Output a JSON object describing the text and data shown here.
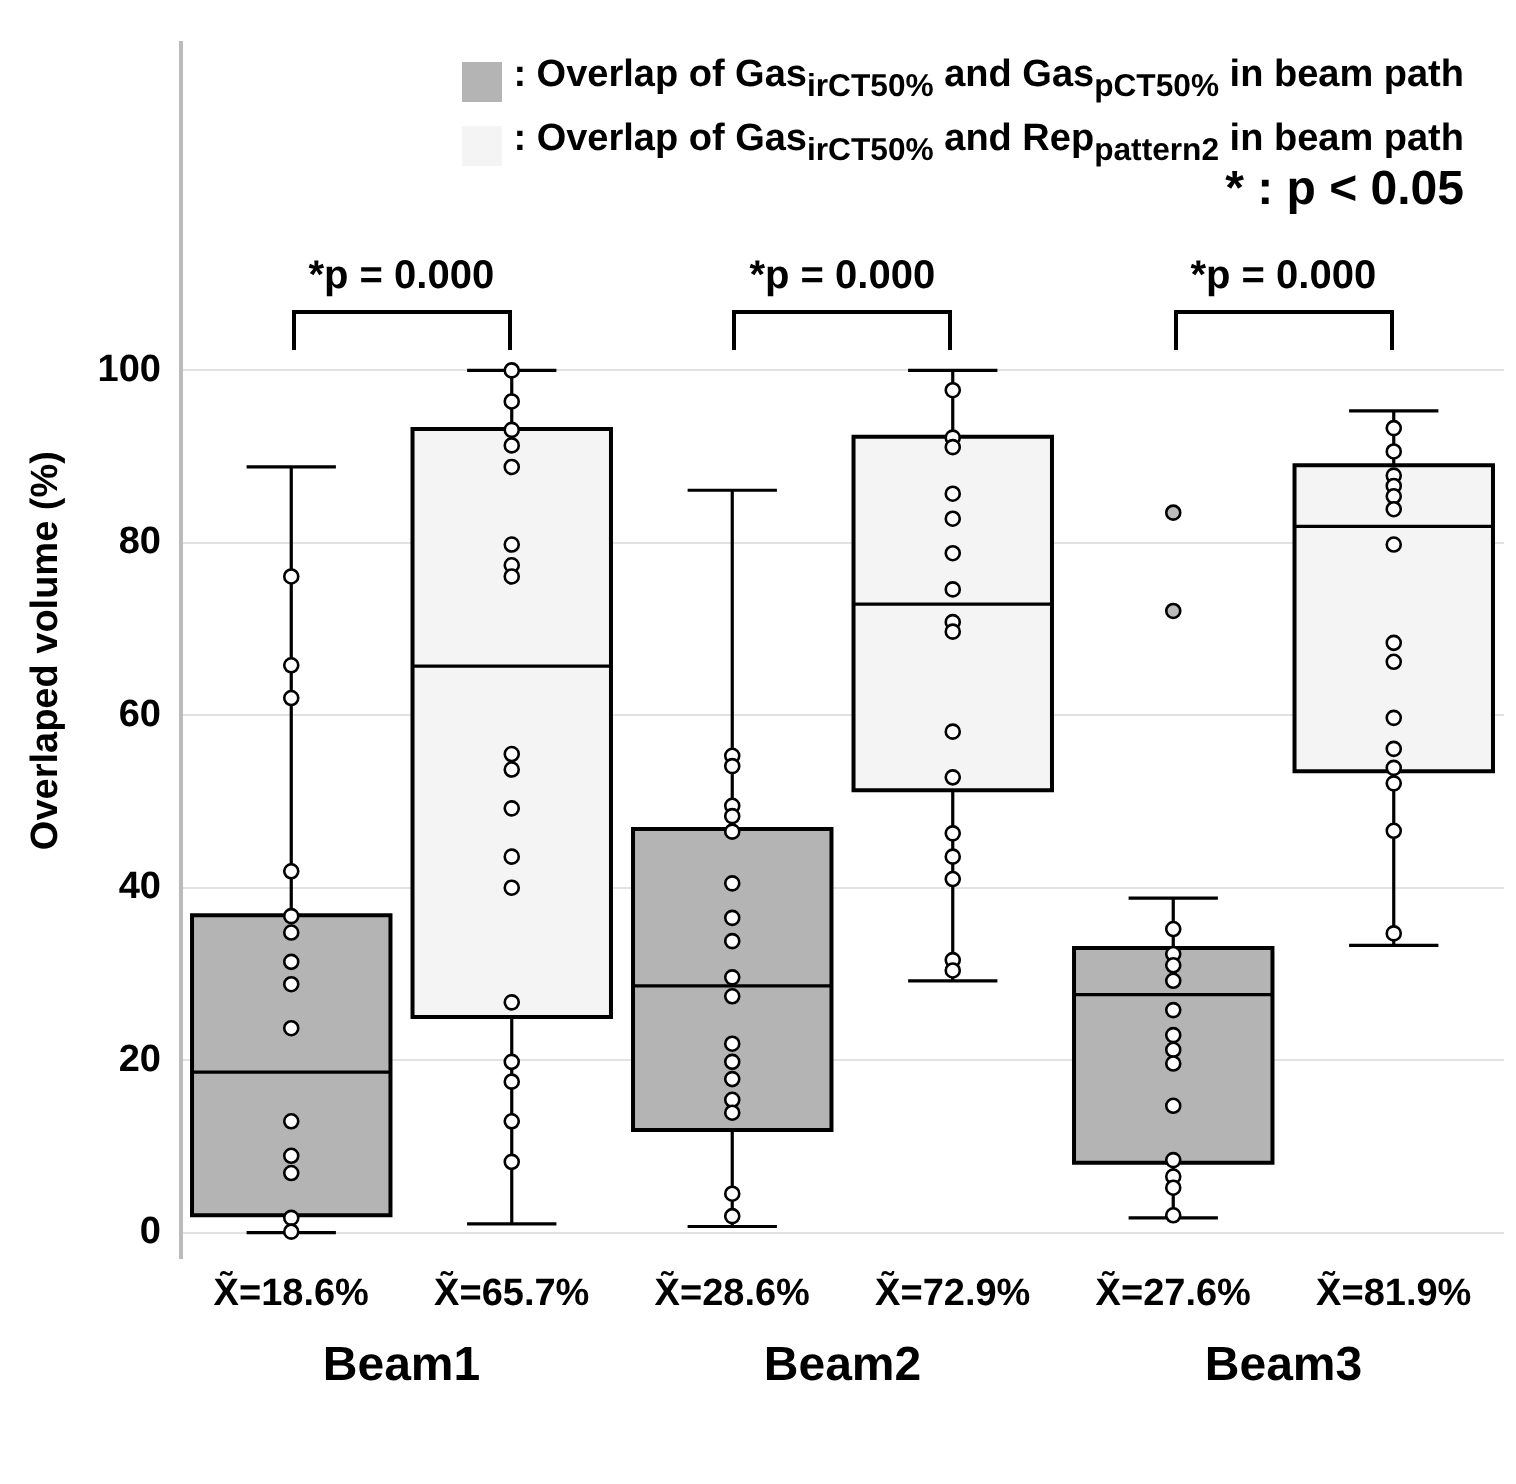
{
  "chart_data": {
    "type": "box",
    "ylabel": "Overlaped volume (%)",
    "categories": [
      "Beam1",
      "Beam2",
      "Beam3"
    ],
    "ylim": [
      -3,
      138
    ],
    "yticks": [
      0,
      20,
      40,
      60,
      80,
      100
    ],
    "grid": "y",
    "legend": "top right",
    "marker": "circle",
    "series": [
      {
        "type": "box",
        "name": ": Overlap of Gas$_{irCT50%}$ and Gas$_{pCT50%}$ in beam path",
        "color": "#b4b4b4",
        "boxes": [
          {
            "low": 0,
            "q1": 2,
            "median": 18.6,
            "q3": 36.8,
            "high": 88.8
          },
          {
            "low": 0.7,
            "q1": 11.9,
            "median": 28.6,
            "q3": 46.8,
            "high": 86.1
          },
          {
            "low": 1.7,
            "q1": 8.1,
            "median": 27.6,
            "q3": 33,
            "high": 38.8,
            "outliers": [
              83.5,
              72.1
            ]
          }
        ]
      },
      {
        "type": "box",
        "name": ": Overlap of Gas$_{irCT50%}$ and Rep$_{pattern2}$ in beam path",
        "color": "#f4f4f4",
        "boxes": [
          {
            "low": 1,
            "q1": 25,
            "median": 65.7,
            "q3": 93.2,
            "high": 100
          },
          {
            "low": 29.2,
            "q1": 51.3,
            "median": 72.9,
            "q3": 92.3,
            "high": 100
          },
          {
            "low": 33.3,
            "q1": 53.5,
            "median": 81.9,
            "q3": 89,
            "high": 95.3
          }
        ]
      },
      {
        "type": "scatter",
        "color": "#ffffff",
        "x": [
          "Beam1",
          "Beam1",
          "Beam1",
          "Beam1",
          "Beam1",
          "Beam1",
          "Beam1",
          "Beam1",
          "Beam1",
          "Beam1",
          "Beam1",
          "Beam1",
          "Beam1",
          "Beam1",
          "Beam2",
          "Beam2",
          "Beam2",
          "Beam2",
          "Beam2",
          "Beam2",
          "Beam2",
          "Beam2",
          "Beam2",
          "Beam2",
          "Beam2",
          "Beam2",
          "Beam2",
          "Beam2",
          "Beam2",
          "Beam2",
          "Beam2",
          "Beam3",
          "Beam3",
          "Beam3",
          "Beam3",
          "Beam3",
          "Beam3",
          "Beam3",
          "Beam3",
          "Beam3",
          "Beam3",
          "Beam3",
          "Beam3",
          "Beam3"
        ],
        "values": [
          76.1,
          65.8,
          62,
          41.9,
          36.7,
          34.8,
          31.4,
          28.8,
          23.7,
          12.9,
          8.9,
          6.9,
          1.7,
          0.1,
          55.3,
          54.1,
          49.5,
          48.3,
          46.5,
          40.5,
          36.5,
          33.8,
          29.6,
          27.4,
          21.9,
          19.8,
          17.8,
          15.4,
          13.9,
          4.5,
          1.9,
          35.2,
          32.3,
          31,
          29.2,
          25.8,
          22.9,
          21.2,
          19.6,
          14.7,
          8.4,
          6.5,
          5.2,
          2
        ]
      },
      {
        "type": "scatter",
        "color": "#ffffff",
        "x": [
          "Beam1",
          "Beam1",
          "Beam1",
          "Beam1",
          "Beam1",
          "Beam1",
          "Beam1",
          "Beam1",
          "Beam1",
          "Beam1",
          "Beam1",
          "Beam1",
          "Beam1",
          "Beam1",
          "Beam1",
          "Beam1",
          "Beam1",
          "Beam1",
          "Beam2",
          "Beam2",
          "Beam2",
          "Beam2",
          "Beam2",
          "Beam2",
          "Beam2",
          "Beam2",
          "Beam2",
          "Beam2",
          "Beam2",
          "Beam2",
          "Beam2",
          "Beam2",
          "Beam2",
          "Beam2",
          "Beam3",
          "Beam3",
          "Beam3",
          "Beam3",
          "Beam3",
          "Beam3",
          "Beam3",
          "Beam3",
          "Beam3",
          "Beam3",
          "Beam3",
          "Beam3",
          "Beam3",
          "Beam3",
          "Beam3"
        ],
        "values": [
          100,
          96.4,
          93.1,
          91.3,
          88.8,
          79.8,
          77.4,
          76.1,
          55.5,
          53.7,
          49.2,
          43.6,
          40,
          26.7,
          19.8,
          17.5,
          12.9,
          8.2,
          97.7,
          92.2,
          91.1,
          85.7,
          82.8,
          78.8,
          74.6,
          70.8,
          69.7,
          58.1,
          52.8,
          46.3,
          43.6,
          41,
          31.6,
          30.4,
          93.3,
          90.6,
          87.8,
          86.6,
          85.4,
          83.9,
          79.8,
          68.4,
          66.2,
          59.7,
          56.1,
          53.9,
          52.1,
          46.6,
          34.7
        ]
      }
    ],
    "annotations": [
      "*p = 0.000",
      "*p = 0.000",
      "*p = 0.000",
      "* : p < 0.05",
      "X̃=18.6%",
      "X̃=65.7%",
      "X̃=28.6%",
      "X̃=72.9%",
      "X̃=27.6%",
      "X̃=81.9%"
    ]
  }
}
